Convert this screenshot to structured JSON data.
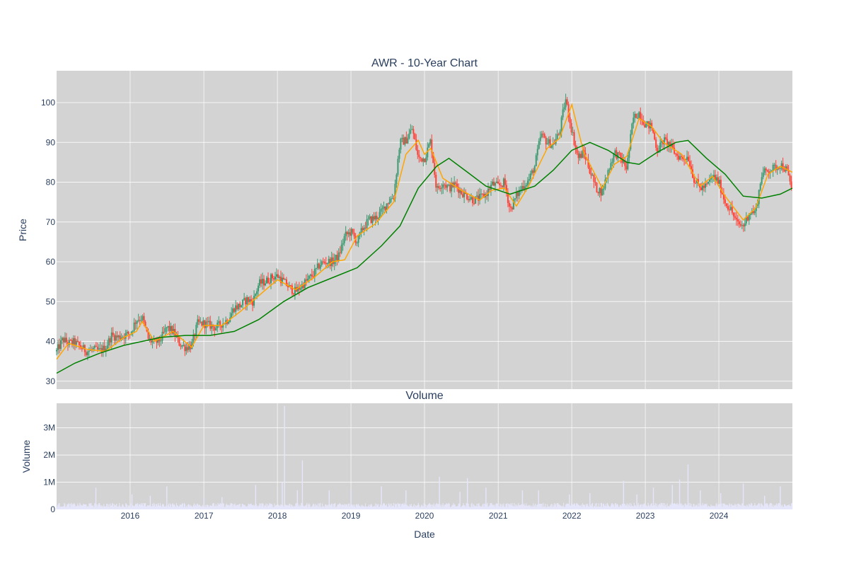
{
  "chart_data": [
    {
      "type": "candlestick",
      "title": "AWR - 10-Year Chart",
      "xlabel": "",
      "ylabel": "Price",
      "x_range": [
        "2015-01-01",
        "2024-12-31"
      ],
      "ylim": [
        28,
        108
      ],
      "y_ticks": [
        30,
        40,
        50,
        60,
        70,
        80,
        90,
        100
      ],
      "x_ticks": [
        "2016",
        "2017",
        "2018",
        "2019",
        "2020",
        "2021",
        "2022",
        "2023",
        "2024"
      ],
      "grid": true,
      "colors": {
        "background": "#d3d3d3",
        "increasing": "#3d9970",
        "decreasing": "#ff4136",
        "ma_short": "#ffa500",
        "ma_long": "#008000"
      },
      "price_path": [
        [
          "2015-01-01",
          37.5
        ],
        [
          "2015-02-01",
          40.5
        ],
        [
          "2015-03-01",
          39.5
        ],
        [
          "2015-04-01",
          39.8
        ],
        [
          "2015-05-01",
          38.5
        ],
        [
          "2015-06-01",
          37.5
        ],
        [
          "2015-07-01",
          38.0
        ],
        [
          "2015-08-01",
          37.5
        ],
        [
          "2015-09-01",
          38.5
        ],
        [
          "2015-10-01",
          41.5
        ],
        [
          "2015-11-01",
          41.0
        ],
        [
          "2015-12-01",
          41.5
        ],
        [
          "2016-01-01",
          42.0
        ],
        [
          "2016-02-01",
          45.5
        ],
        [
          "2016-03-01",
          46.0
        ],
        [
          "2016-04-01",
          40.5
        ],
        [
          "2016-05-01",
          39.5
        ],
        [
          "2016-06-01",
          40.5
        ],
        [
          "2016-07-01",
          43.5
        ],
        [
          "2016-08-01",
          42.5
        ],
        [
          "2016-09-01",
          39.5
        ],
        [
          "2016-10-01",
          38.5
        ],
        [
          "2016-11-01",
          39.0
        ],
        [
          "2016-12-01",
          44.5
        ],
        [
          "2017-01-01",
          44.5
        ],
        [
          "2017-02-01",
          44.0
        ],
        [
          "2017-03-01",
          43.5
        ],
        [
          "2017-04-01",
          44.5
        ],
        [
          "2017-05-01",
          45.5
        ],
        [
          "2017-06-01",
          48.5
        ],
        [
          "2017-07-01",
          49.0
        ],
        [
          "2017-08-01",
          50.5
        ],
        [
          "2017-09-01",
          50.0
        ],
        [
          "2017-10-01",
          54.5
        ],
        [
          "2017-11-01",
          55.0
        ],
        [
          "2017-12-01",
          56.0
        ],
        [
          "2018-01-01",
          56.5
        ],
        [
          "2018-02-01",
          55.0
        ],
        [
          "2018-03-01",
          53.5
        ],
        [
          "2018-04-01",
          52.5
        ],
        [
          "2018-05-01",
          54.0
        ],
        [
          "2018-06-01",
          55.5
        ],
        [
          "2018-07-01",
          57.0
        ],
        [
          "2018-08-01",
          59.5
        ],
        [
          "2018-09-01",
          60.0
        ],
        [
          "2018-10-01",
          60.0
        ],
        [
          "2018-11-01",
          61.5
        ],
        [
          "2018-12-01",
          66.5
        ],
        [
          "2019-01-01",
          67.5
        ],
        [
          "2019-02-01",
          65.0
        ],
        [
          "2019-03-01",
          68.5
        ],
        [
          "2019-04-01",
          70.5
        ],
        [
          "2019-05-01",
          71.0
        ],
        [
          "2019-06-01",
          72.5
        ],
        [
          "2019-07-01",
          75.0
        ],
        [
          "2019-08-01",
          76.5
        ],
        [
          "2019-09-01",
          90.0
        ],
        [
          "2019-10-01",
          90.5
        ],
        [
          "2019-11-01",
          93.5
        ],
        [
          "2019-12-01",
          86.0
        ],
        [
          "2020-01-01",
          86.0
        ],
        [
          "2020-02-01",
          90.5
        ],
        [
          "2020-03-01",
          78.0
        ],
        [
          "2020-04-01",
          80.0
        ],
        [
          "2020-05-01",
          78.5
        ],
        [
          "2020-06-01",
          79.5
        ],
        [
          "2020-07-01",
          77.5
        ],
        [
          "2020-08-01",
          76.5
        ],
        [
          "2020-09-01",
          75.5
        ],
        [
          "2020-10-01",
          76.0
        ],
        [
          "2020-11-01",
          77.0
        ],
        [
          "2020-12-01",
          79.5
        ],
        [
          "2021-01-01",
          79.0
        ],
        [
          "2021-02-01",
          80.0
        ],
        [
          "2021-03-01",
          73.0
        ],
        [
          "2021-04-01",
          76.5
        ],
        [
          "2021-05-01",
          79.0
        ],
        [
          "2021-06-01",
          80.5
        ],
        [
          "2021-07-01",
          84.0
        ],
        [
          "2021-08-01",
          92.0
        ],
        [
          "2021-09-01",
          90.0
        ],
        [
          "2021-10-01",
          89.5
        ],
        [
          "2021-11-01",
          92.5
        ],
        [
          "2021-12-01",
          101.0
        ],
        [
          "2022-01-01",
          93.0
        ],
        [
          "2022-02-01",
          86.0
        ],
        [
          "2022-03-01",
          87.5
        ],
        [
          "2022-04-01",
          83.0
        ],
        [
          "2022-05-01",
          78.5
        ],
        [
          "2022-06-01",
          77.5
        ],
        [
          "2022-07-01",
          83.0
        ],
        [
          "2022-08-01",
          87.5
        ],
        [
          "2022-09-01",
          86.0
        ],
        [
          "2022-10-01",
          83.5
        ],
        [
          "2022-11-01",
          96.0
        ],
        [
          "2022-12-01",
          97.5
        ],
        [
          "2023-01-01",
          94.5
        ],
        [
          "2023-02-01",
          94.0
        ],
        [
          "2023-03-01",
          88.0
        ],
        [
          "2023-04-01",
          90.5
        ],
        [
          "2023-05-01",
          89.5
        ],
        [
          "2023-06-01",
          87.0
        ],
        [
          "2023-07-01",
          86.0
        ],
        [
          "2023-08-01",
          86.5
        ],
        [
          "2023-09-01",
          80.5
        ],
        [
          "2023-10-01",
          78.5
        ],
        [
          "2023-11-01",
          79.0
        ],
        [
          "2023-12-01",
          81.5
        ],
        [
          "2024-01-01",
          80.0
        ],
        [
          "2024-02-01",
          75.0
        ],
        [
          "2024-03-01",
          73.0
        ],
        [
          "2024-04-01",
          69.5
        ],
        [
          "2024-05-01",
          69.0
        ],
        [
          "2024-06-01",
          72.5
        ],
        [
          "2024-07-01",
          72.5
        ],
        [
          "2024-08-01",
          82.0
        ],
        [
          "2024-09-01",
          83.0
        ],
        [
          "2024-10-01",
          83.5
        ],
        [
          "2024-11-01",
          84.5
        ],
        [
          "2024-12-01",
          83.0
        ],
        [
          "2024-12-31",
          78.0
        ]
      ],
      "ma_short": [
        [
          "2015-01-01",
          35.5
        ],
        [
          "2015-03-01",
          39.5
        ],
        [
          "2015-06-01",
          38.0
        ],
        [
          "2015-09-01",
          37.5
        ],
        [
          "2015-12-01",
          41.0
        ],
        [
          "2016-02-01",
          42.5
        ],
        [
          "2016-03-01",
          45.0
        ],
        [
          "2016-05-01",
          40.0
        ],
        [
          "2016-08-01",
          42.5
        ],
        [
          "2016-11-01",
          38.5
        ],
        [
          "2017-01-01",
          44.0
        ],
        [
          "2017-04-01",
          44.0
        ],
        [
          "2017-07-01",
          47.5
        ],
        [
          "2017-10-01",
          51.5
        ],
        [
          "2018-01-01",
          55.5
        ],
        [
          "2018-04-01",
          53.0
        ],
        [
          "2018-07-01",
          56.0
        ],
        [
          "2018-10-01",
          60.0
        ],
        [
          "2018-12-01",
          60.5
        ],
        [
          "2019-02-01",
          66.5
        ],
        [
          "2019-05-01",
          69.5
        ],
        [
          "2019-08-01",
          75.0
        ],
        [
          "2019-10-01",
          87.0
        ],
        [
          "2019-12-01",
          90.5
        ],
        [
          "2020-01-01",
          87.0
        ],
        [
          "2020-02-01",
          88.5
        ],
        [
          "2020-04-01",
          81.0
        ],
        [
          "2020-07-01",
          78.0
        ],
        [
          "2020-10-01",
          75.5
        ],
        [
          "2020-12-01",
          78.0
        ],
        [
          "2021-02-01",
          78.5
        ],
        [
          "2021-04-01",
          74.0
        ],
        [
          "2021-06-01",
          79.0
        ],
        [
          "2021-09-01",
          88.5
        ],
        [
          "2021-11-01",
          91.0
        ],
        [
          "2022-01-01",
          99.5
        ],
        [
          "2022-03-01",
          87.5
        ],
        [
          "2022-06-01",
          78.5
        ],
        [
          "2022-08-01",
          84.5
        ],
        [
          "2022-10-01",
          86.5
        ],
        [
          "2022-12-01",
          96.0
        ],
        [
          "2023-02-01",
          94.0
        ],
        [
          "2023-04-01",
          90.0
        ],
        [
          "2023-07-01",
          87.0
        ],
        [
          "2023-10-01",
          79.0
        ],
        [
          "2023-12-01",
          81.5
        ],
        [
          "2024-02-01",
          76.5
        ],
        [
          "2024-05-01",
          70.5
        ],
        [
          "2024-07-01",
          73.5
        ],
        [
          "2024-09-01",
          82.0
        ],
        [
          "2024-11-01",
          84.0
        ],
        [
          "2024-12-31",
          82.5
        ]
      ],
      "ma_long": [
        [
          "2015-01-01",
          32.0
        ],
        [
          "2015-04-01",
          34.5
        ],
        [
          "2015-08-01",
          37.0
        ],
        [
          "2015-12-01",
          39.0
        ],
        [
          "2016-06-01",
          41.0
        ],
        [
          "2016-10-01",
          41.5
        ],
        [
          "2017-02-01",
          41.5
        ],
        [
          "2017-06-01",
          42.5
        ],
        [
          "2017-10-01",
          45.5
        ],
        [
          "2018-02-01",
          50.0
        ],
        [
          "2018-06-01",
          53.5
        ],
        [
          "2018-10-01",
          56.0
        ],
        [
          "2019-02-01",
          58.5
        ],
        [
          "2019-06-01",
          64.0
        ],
        [
          "2019-09-01",
          69.0
        ],
        [
          "2019-12-01",
          78.5
        ],
        [
          "2020-03-01",
          84.0
        ],
        [
          "2020-05-01",
          86.0
        ],
        [
          "2020-08-01",
          82.5
        ],
        [
          "2020-11-01",
          79.0
        ],
        [
          "2021-03-01",
          77.0
        ],
        [
          "2021-07-01",
          79.0
        ],
        [
          "2021-10-01",
          83.0
        ],
        [
          "2022-01-01",
          88.0
        ],
        [
          "2022-04-01",
          90.0
        ],
        [
          "2022-07-01",
          88.0
        ],
        [
          "2022-10-01",
          85.0
        ],
        [
          "2022-12-01",
          84.5
        ],
        [
          "2023-03-01",
          87.5
        ],
        [
          "2023-06-01",
          90.0
        ],
        [
          "2023-08-01",
          90.5
        ],
        [
          "2023-11-01",
          86.0
        ],
        [
          "2024-02-01",
          82.0
        ],
        [
          "2024-05-01",
          76.5
        ],
        [
          "2024-08-01",
          76.0
        ],
        [
          "2024-11-01",
          77.0
        ],
        [
          "2024-12-31",
          78.5
        ]
      ]
    },
    {
      "type": "bar",
      "title": "Volume",
      "xlabel": "Date",
      "ylabel": "Volume",
      "x_range": [
        "2015-01-01",
        "2024-12-31"
      ],
      "ylim": [
        0,
        3900000
      ],
      "y_ticks": [
        0,
        1000000,
        2000000,
        3000000
      ],
      "y_tick_labels": [
        "0",
        "1M",
        "2M",
        "3M"
      ],
      "x_ticks": [
        "2016",
        "2017",
        "2018",
        "2019",
        "2020",
        "2021",
        "2022",
        "2023",
        "2024"
      ],
      "grid": true,
      "colors": {
        "background": "#d3d3d3",
        "bar": "#e6e6fa"
      },
      "baseline_volume": 200000,
      "spikes": [
        [
          "2015-07-15",
          800000
        ],
        [
          "2016-01-10",
          550000
        ],
        [
          "2016-04-10",
          500000
        ],
        [
          "2016-07-01",
          850000
        ],
        [
          "2017-01-01",
          450000
        ],
        [
          "2017-04-01",
          450000
        ],
        [
          "2017-09-15",
          900000
        ],
        [
          "2018-02-05",
          3800000
        ],
        [
          "2018-01-25",
          1000000
        ],
        [
          "2018-05-05",
          1800000
        ],
        [
          "2018-04-10",
          700000
        ],
        [
          "2018-09-15",
          700000
        ],
        [
          "2019-01-01",
          750000
        ],
        [
          "2019-06-01",
          850000
        ],
        [
          "2019-10-01",
          700000
        ],
        [
          "2020-03-15",
          1200000
        ],
        [
          "2020-06-25",
          650000
        ],
        [
          "2020-08-01",
          1150000
        ],
        [
          "2020-11-01",
          800000
        ],
        [
          "2021-05-01",
          700000
        ],
        [
          "2021-07-20",
          700000
        ],
        [
          "2021-12-20",
          550000
        ],
        [
          "2022-04-01",
          600000
        ],
        [
          "2022-09-15",
          1050000
        ],
        [
          "2022-11-20",
          550000
        ],
        [
          "2023-02-10",
          800000
        ],
        [
          "2023-05-15",
          900000
        ],
        [
          "2023-06-20",
          1100000
        ],
        [
          "2023-08-01",
          1650000
        ],
        [
          "2023-10-01",
          700000
        ],
        [
          "2024-01-10",
          600000
        ],
        [
          "2024-05-01",
          950000
        ],
        [
          "2024-08-15",
          500000
        ],
        [
          "2024-11-01",
          850000
        ]
      ]
    }
  ]
}
